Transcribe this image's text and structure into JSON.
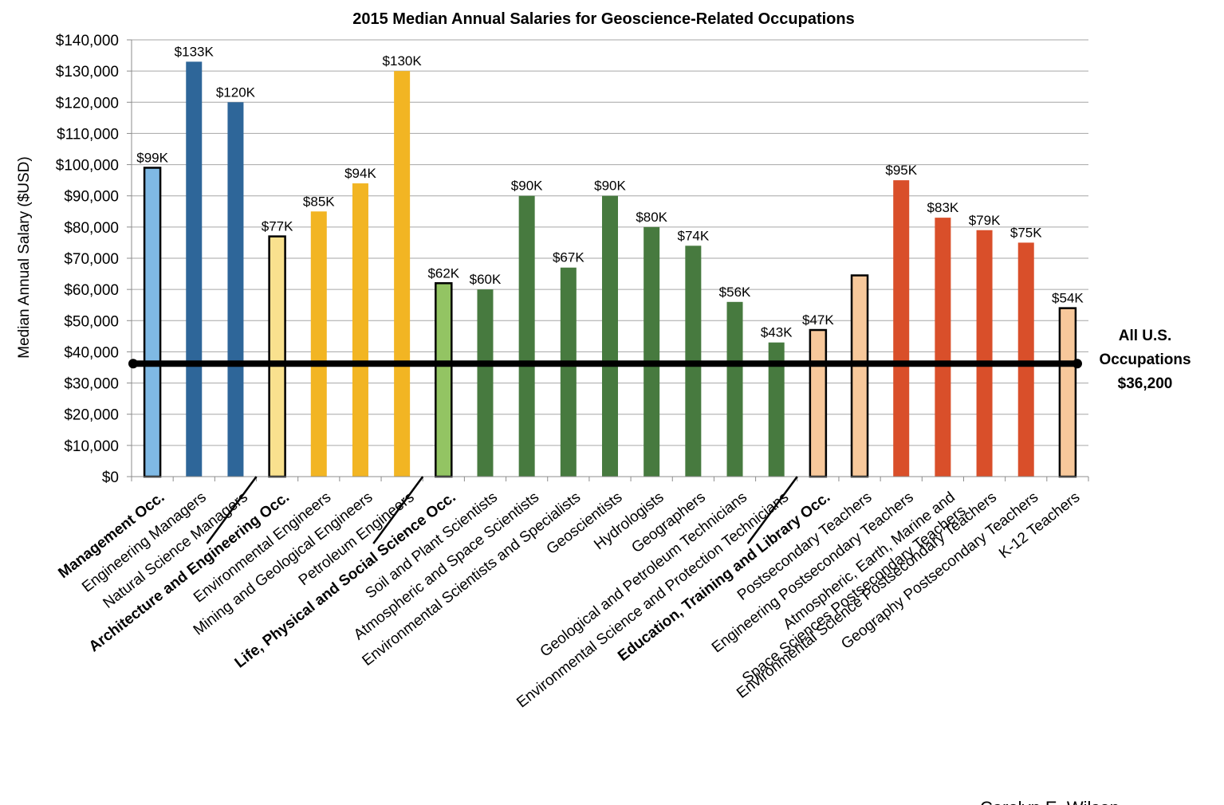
{
  "chart_data": {
    "type": "bar",
    "title": "2015 Median Annual Salaries for Geoscience-Related Occupations",
    "ylabel": "Median Annual Salary ($USD)",
    "ylim": [
      0,
      140000
    ],
    "y_ticks": [
      "$0",
      "$10,000",
      "$20,000",
      "$30,000",
      "$40,000",
      "$50,000",
      "$60,000",
      "$70,000",
      "$80,000",
      "$90,000",
      "$100,000",
      "$110,000",
      "$120,000",
      "$130,000",
      "$140,000"
    ],
    "grid": true,
    "categories": [
      "Management Occ.",
      "Engineering Managers",
      "Natural Science Managers",
      "Architecture and Engineering Occ.",
      "Environmental Engineers",
      "Mining and Geological Engineers",
      "Petroleum Engineers",
      "Life, Physical and Social Science Occ.",
      "Soil and Plant Scientists",
      "Atmospheric and Space Scientists",
      "Environmental Scientists and Specialists",
      "Geoscientists",
      "Hydrologists",
      "Geographers",
      "Geological and Petroleum Technicians",
      "Environmental Science and Protection Technicians",
      "Education, Training and Library Occ.",
      "Postsecondary Teachers",
      "Engineering Postsecondary Teachers",
      "Atmospheric, Earth, Marine and Space Sciences Postsecondary Teachers",
      "Environmental Science Postsecondary Teachers",
      "Geography Postsecondary Teachers",
      "K-12 Teachers"
    ],
    "category_lines": [
      [
        "Management Occ."
      ],
      [
        "Engineering Managers"
      ],
      [
        "Natural Science Managers"
      ],
      [
        "Architecture and Engineering Occ."
      ],
      [
        "Environmental Engineers"
      ],
      [
        "Mining and Geological Engineers"
      ],
      [
        "Petroleum Engineers"
      ],
      [
        "Life, Physical and Social Science Occ."
      ],
      [
        "Soil and Plant Scientists"
      ],
      [
        "Atmospheric and Space Scientists"
      ],
      [
        "Environmental Scientists and Specialists"
      ],
      [
        "Geoscientists"
      ],
      [
        "Hydrologists"
      ],
      [
        "Geographers"
      ],
      [
        "Geological and Petroleum Technicians"
      ],
      [
        "Environmental Science and Protection Technicians"
      ],
      [
        "Education, Training and Library Occ."
      ],
      [
        "Postsecondary Teachers"
      ],
      [
        "Engineering Postsecondary Teachers"
      ],
      [
        "Atmospheric, Earth, Marine and",
        "Space Sciences Postsecondary Teachers"
      ],
      [
        "Environmental Science Postsecondary Teachers"
      ],
      [
        "Geography Postsecondary Teachers"
      ],
      [
        "K-12 Teachers"
      ]
    ],
    "bold_categories": [
      0,
      3,
      7,
      16
    ],
    "values": [
      99000,
      133000,
      120000,
      77000,
      85000,
      94000,
      130000,
      62000,
      60000,
      90000,
      67000,
      90000,
      80000,
      74000,
      56000,
      43000,
      47000,
      64500,
      95000,
      83000,
      79000,
      75000,
      54000
    ],
    "data_labels": [
      "$99K",
      "$133K",
      "$120K",
      "$77K",
      "$85K",
      "$94K",
      "$130K",
      "$62K",
      "$60K",
      "$90K",
      "$67K",
      "$90K",
      "$80K",
      "$74K",
      "$56K",
      "$43K",
      "$47K",
      "",
      "$95K",
      "$83K",
      "$79K",
      "$75K",
      "$54K"
    ],
    "colors": [
      "#7fb9e4",
      "#2e6699",
      "#2e6699",
      "#f9e18e",
      "#f2b523",
      "#f2b523",
      "#f2b523",
      "#93c463",
      "#477a3f",
      "#477a3f",
      "#477a3f",
      "#477a3f",
      "#477a3f",
      "#477a3f",
      "#477a3f",
      "#477a3f",
      "#f7c89b",
      "#f7c89b",
      "#d94f2a",
      "#d94f2a",
      "#d94f2a",
      "#d94f2a",
      "#f7c89b"
    ],
    "outlined": [
      0,
      3,
      7,
      16,
      17,
      22
    ],
    "reference_line": {
      "value": 36200,
      "label_lines": [
        "All U.S.",
        "Occupations",
        "$36,200"
      ]
    },
    "group_separators_after": [
      2,
      6,
      15
    ]
  },
  "credit": "Carolyn E. Wilson"
}
